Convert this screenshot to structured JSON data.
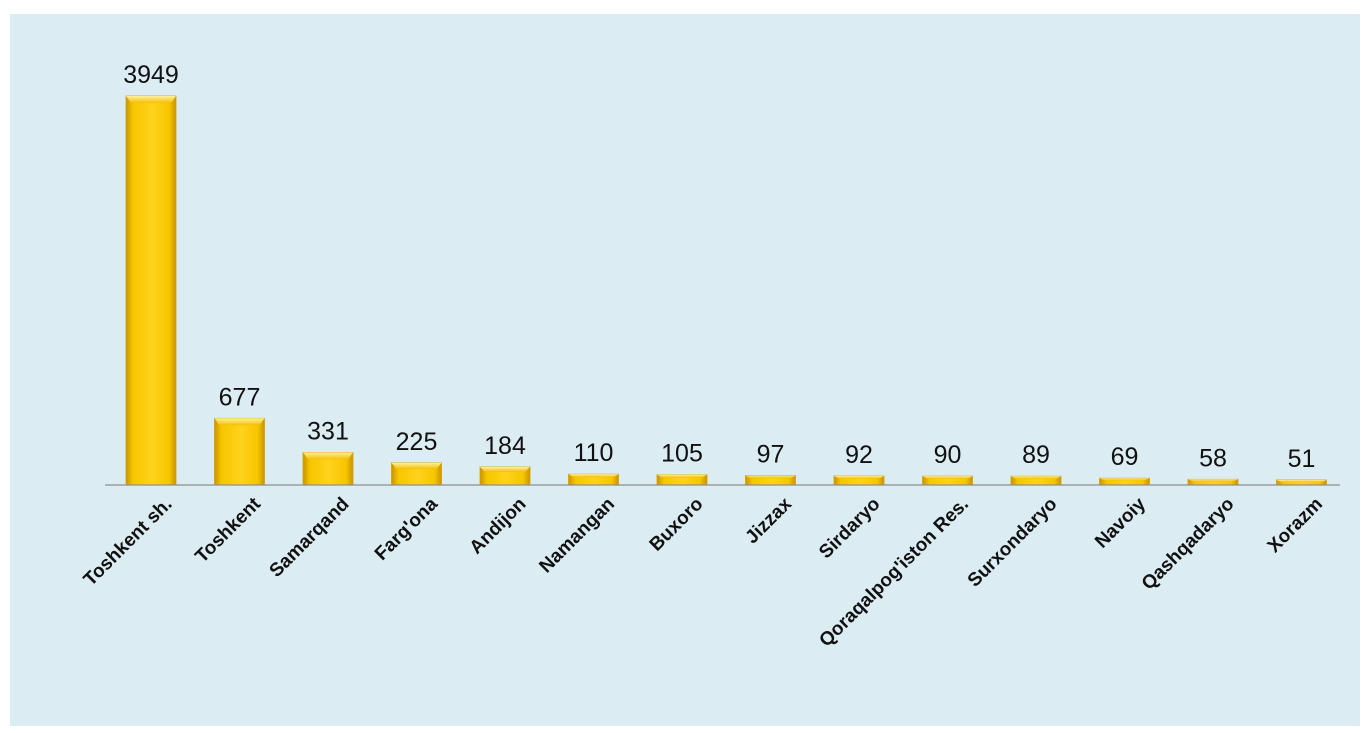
{
  "chart_data": {
    "type": "bar",
    "title": "",
    "xlabel": "",
    "ylabel": "",
    "categories": [
      "Toshkent sh.",
      "Toshkent",
      "Samarqand",
      "Farg'ona",
      "Andijon",
      "Namangan",
      "Buxoro",
      "Jizzax",
      "Sirdaryo",
      "Qoraqalpog'iston Res.",
      "Surxondaryo",
      "Navoiy",
      "Qashqadaryo",
      "Xorazm"
    ],
    "values": [
      3949,
      677,
      331,
      225,
      184,
      110,
      105,
      97,
      92,
      90,
      89,
      69,
      58,
      51
    ],
    "ylim": [
      0,
      3949
    ],
    "grid": false,
    "legend": "none",
    "data_labels": true,
    "colors": {
      "bar": "#f7c600",
      "bar_highlight": "#ffe97a",
      "bar_shadow": "#c99300",
      "background": "#dcecf3",
      "axis": "#8f8f8f",
      "text": "#111111"
    }
  }
}
